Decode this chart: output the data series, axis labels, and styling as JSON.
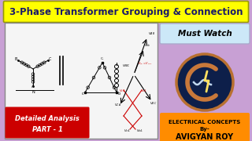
{
  "bg_color": "#c8a0d4",
  "title_text": "3-Phase Transformer Grouping & Connection",
  "title_bg": "#ffff00",
  "title_fg": "#1a1a6a",
  "must_watch_text": "Must Watch",
  "must_watch_bg": "#cce8f8",
  "must_watch_fg": "#000000",
  "badge_bg": "#ff8c00",
  "badge_line1": "ELECTRICAL CONCEPTS",
  "badge_line2": "By-",
  "badge_line3": "AVIGYAN ROY",
  "badge_fg": "#000000",
  "diagram_bg": "#f5f5f5",
  "red_label_bg": "#cc0000",
  "red_label_fg": "#ffffff",
  "red_label_line1": "Detailed Analysis",
  "red_label_line2": "PART - 1",
  "logo_bg": "#0d1f4a",
  "fig_width": 3.2,
  "fig_height": 1.8,
  "dpi": 100
}
